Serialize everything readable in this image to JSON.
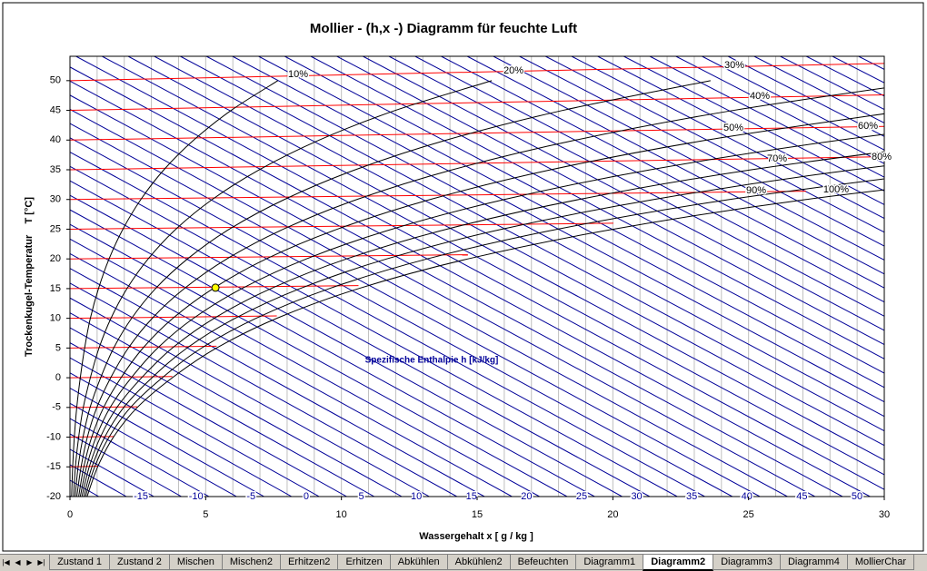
{
  "chart_data": {
    "type": "mollier",
    "title": "Mollier - (h,x -) Diagramm für feuchte Luft",
    "xlabel": "Wassergehalt x [ g / kg ]",
    "ylabel": "Trockenkugel-Temperatur    T [°C]",
    "enthalpy_title": "Spezifische Enthalpie h [kJ/kg]",
    "xlim": [
      0,
      30
    ],
    "ylim": [
      -20,
      54.1
    ],
    "xticks": [
      0,
      5,
      10,
      15,
      20,
      25,
      30
    ],
    "yticks": [
      -20,
      -15,
      -10,
      -5,
      0,
      5,
      10,
      15,
      20,
      25,
      30,
      35,
      40,
      45,
      50
    ],
    "xgrid": [
      0,
      1,
      2,
      3,
      4,
      5,
      6,
      7,
      8,
      9,
      10,
      11,
      12,
      13,
      14,
      15,
      16,
      17,
      18,
      19,
      20,
      21,
      22,
      23,
      24,
      25,
      26,
      27,
      28,
      29,
      30
    ],
    "series": [
      {
        "name": "10%",
        "color": "#000000",
        "x": [
          0.06,
          0.1,
          0.16,
          0.25,
          0.38,
          0.54,
          0.75,
          1.05,
          1.44,
          1.95,
          2.61,
          3.46,
          4.56,
          5.94,
          7.66
        ],
        "values": [
          -20,
          -15,
          -10,
          -5,
          0,
          5,
          10,
          15,
          20,
          25,
          30,
          35,
          40,
          45,
          50
        ]
      },
      {
        "name": "20%",
        "color": "#000000",
        "x": [
          0.13,
          0.2,
          0.32,
          0.49,
          0.75,
          1.07,
          1.51,
          2.1,
          2.88,
          3.9,
          5.24,
          6.97,
          9.18,
          11.99,
          15.54
        ],
        "values": [
          -20,
          -15,
          -10,
          -5,
          0,
          5,
          10,
          15,
          20,
          25,
          30,
          35,
          40,
          45,
          50
        ]
      },
      {
        "name": "30%",
        "color": "#000000",
        "x": [
          0.19,
          0.3,
          0.48,
          0.74,
          1.13,
          1.61,
          2.27,
          3.15,
          4.33,
          5.87,
          7.9,
          10.51,
          13.87,
          18.16,
          23.6
        ],
        "values": [
          -20,
          -15,
          -10,
          -5,
          0,
          5,
          10,
          15,
          20,
          25,
          30,
          35,
          40,
          45,
          50
        ]
      },
      {
        "name": "40%",
        "color": "#000000",
        "x": [
          0.25,
          0.41,
          0.64,
          0.99,
          1.5,
          2.15,
          3.03,
          4.21,
          5.78,
          7.86,
          10.57,
          14.09,
          18.63,
          24.45,
          31.87
        ],
        "values": [
          -20,
          -15,
          -10,
          -5,
          0,
          5,
          10,
          15,
          20,
          25,
          30,
          35,
          40,
          45,
          50
        ]
      },
      {
        "name": "50%",
        "color": "#000000",
        "x": [
          0.32,
          0.51,
          0.8,
          1.24,
          1.88,
          2.69,
          3.79,
          5.27,
          7.23,
          9.85,
          13.27,
          17.71,
          23.47,
          30.87
        ],
        "values": [
          -20,
          -15,
          -10,
          -5,
          0,
          5,
          10,
          15,
          20,
          25,
          30,
          35,
          40,
          45
        ]
      },
      {
        "name": "60%",
        "color": "#000000",
        "x": [
          0.38,
          0.61,
          0.96,
          1.48,
          2.26,
          3.23,
          4.55,
          6.33,
          8.71,
          11.86,
          16.0,
          21.38,
          28.38,
          37.41
        ],
        "values": [
          -20,
          -15,
          -10,
          -5,
          0,
          5,
          10,
          15,
          20,
          25,
          30,
          35,
          40,
          45
        ]
      },
      {
        "name": "70%",
        "color": "#000000",
        "x": [
          0.44,
          0.71,
          1.12,
          1.73,
          2.64,
          3.77,
          5.31,
          7.4,
          10.19,
          13.88,
          18.75,
          25.1,
          33.36
        ],
        "values": [
          -20,
          -15,
          -10,
          -5,
          0,
          5,
          10,
          15,
          20,
          25,
          30,
          35,
          40
        ]
      },
      {
        "name": "80%",
        "color": "#000000",
        "x": [
          0.51,
          0.81,
          1.28,
          1.98,
          3.02,
          4.31,
          6.08,
          8.47,
          11.67,
          15.91,
          21.51,
          28.85,
          38.41
        ],
        "values": [
          -20,
          -15,
          -10,
          -5,
          0,
          5,
          10,
          15,
          20,
          25,
          30,
          35,
          40
        ]
      },
      {
        "name": "90%",
        "color": "#000000",
        "x": [
          0.57,
          0.91,
          1.44,
          2.23,
          3.4,
          4.85,
          6.85,
          9.55,
          13.16,
          17.96,
          24.3,
          32.64
        ],
        "values": [
          -20,
          -15,
          -10,
          -5,
          0,
          5,
          10,
          15,
          20,
          25,
          30,
          35
        ]
      },
      {
        "name": "100%",
        "color": "#000000",
        "x": [
          0.63,
          1.02,
          1.6,
          2.48,
          3.77,
          5.4,
          7.62,
          10.63,
          14.66,
          20.02,
          27.12,
          36.48
        ],
        "values": [
          -20,
          -15,
          -10,
          -5,
          0,
          5,
          10,
          15,
          20,
          25,
          30,
          35
        ]
      }
    ],
    "isotherm_color": "#ff0000",
    "isotherms": [
      {
        "x": [
          0,
          0.63
        ],
        "values": [
          -20,
          -20
        ]
      },
      {
        "x": [
          0,
          1.02
        ],
        "values": [
          -15,
          -14.9
        ]
      },
      {
        "x": [
          0,
          1.6
        ],
        "values": [
          -10,
          -9.9
        ]
      },
      {
        "x": [
          0,
          2.48
        ],
        "values": [
          -5,
          -4.9
        ]
      },
      {
        "x": [
          0,
          3.77
        ],
        "values": [
          0,
          0.2
        ]
      },
      {
        "x": [
          0,
          5.4
        ],
        "values": [
          5,
          5.3
        ]
      },
      {
        "x": [
          0,
          7.62
        ],
        "values": [
          10,
          10.4
        ]
      },
      {
        "x": [
          0,
          10.63
        ],
        "values": [
          15,
          15.5
        ]
      },
      {
        "x": [
          0,
          14.66
        ],
        "values": [
          20,
          20.7
        ]
      },
      {
        "x": [
          0,
          20.02
        ],
        "values": [
          25,
          26.0
        ]
      },
      {
        "x": [
          0,
          27.12
        ],
        "values": [
          30,
          31.4
        ]
      },
      {
        "x": [
          0,
          30
        ],
        "values": [
          35,
          37.2
        ]
      },
      {
        "x": [
          0,
          30
        ],
        "values": [
          40,
          42.3
        ]
      },
      {
        "x": [
          0,
          30
        ],
        "values": [
          45,
          47.6
        ]
      },
      {
        "x": [
          0,
          30
        ],
        "values": [
          50,
          52.9
        ]
      }
    ],
    "enthalpy_color": "#000099",
    "enthalpy_lines": [
      -20,
      -17.5,
      -15,
      -12.5,
      -10,
      -7.5,
      -5,
      -2.5,
      0,
      2.5,
      5,
      7.5,
      10,
      12.5,
      15,
      17.5,
      20,
      22.5,
      25,
      27.5,
      30,
      32.5,
      35,
      37.5,
      40,
      42.5,
      45,
      47.5,
      50,
      52.5,
      55,
      57.5,
      60,
      62.5,
      65,
      67.5,
      70,
      72.5,
      75,
      77.5,
      80,
      82.5,
      85,
      87.5,
      90,
      92.5,
      95,
      97.5,
      100,
      102.5,
      105,
      107.5,
      110,
      112.5,
      115,
      117.5,
      120,
      122.5,
      125,
      127.5,
      130,
      132.5
    ],
    "enthalpy_labels": [
      -15,
      -10,
      -5,
      0,
      5,
      10,
      15,
      20,
      25,
      30,
      35,
      40,
      45,
      50
    ],
    "state_point": {
      "x": 5.36,
      "y": 15.15,
      "color": "#ffff00"
    }
  },
  "sheet_tabs": {
    "tabs": [
      "Zustand 1",
      "Zustand 2",
      "Mischen",
      "Mischen2",
      "Erhitzen2",
      "Erhitzen",
      "Abkühlen",
      "Abkühlen2",
      "Befeuchten",
      "Diagramm1",
      "Diagramm2",
      "Diagramm3",
      "Diagramm4",
      "MollierChar"
    ],
    "active": 10
  }
}
